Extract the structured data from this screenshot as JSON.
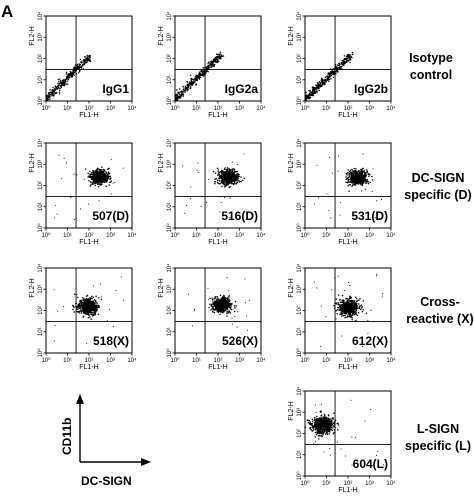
{
  "figure": {
    "panel_letter": "A",
    "tick_labels": [
      "10⁰",
      "10¹",
      "10²",
      "10³",
      "10⁴"
    ],
    "x_axis_label": "FL1-H",
    "y_axis_label": "FL2-H",
    "legend_key": {
      "y": "CD11b",
      "x": "DC-SIGN"
    },
    "row_labels": [
      [
        "Isotype",
        "control"
      ],
      [
        "DC-SIGN",
        "specific (D)"
      ],
      [
        "Cross-",
        "reactive (X)"
      ],
      [
        "L-SIGN",
        "specific (L)"
      ]
    ]
  },
  "chart_data": {
    "type": "scatter",
    "xlabel": "FL1-H",
    "ylabel": "FL2-H",
    "xscale": "log",
    "yscale": "log",
    "xlim": [
      1,
      10000
    ],
    "ylim": [
      1,
      10000
    ],
    "quadrant_gate": {
      "x": 25,
      "y": 30
    },
    "plots": [
      {
        "row": 1,
        "col": 1,
        "label": "IgG1",
        "population": "diagonal",
        "center": [
          5,
          6
        ],
        "spread": 0.55
      },
      {
        "row": 1,
        "col": 2,
        "label": "IgG2a",
        "population": "diagonal",
        "center": [
          6,
          7
        ],
        "spread": 0.55
      },
      {
        "row": 1,
        "col": 3,
        "label": "IgG2b",
        "population": "diagonal",
        "center": [
          6,
          7
        ],
        "spread": 0.55
      },
      {
        "row": 2,
        "col": 1,
        "label": "507(D)",
        "population": "cluster",
        "center": [
          300,
          250
        ],
        "spread": 0.22
      },
      {
        "row": 2,
        "col": 2,
        "label": "516(D)",
        "population": "cluster",
        "center": [
          300,
          250
        ],
        "spread": 0.22
      },
      {
        "row": 2,
        "col": 3,
        "label": "531(D)",
        "population": "cluster",
        "center": [
          280,
          230
        ],
        "spread": 0.22
      },
      {
        "row": 3,
        "col": 1,
        "label": "518(X)",
        "population": "cluster",
        "center": [
          90,
          150
        ],
        "spread": 0.24
      },
      {
        "row": 3,
        "col": 2,
        "label": "526(X)",
        "population": "cluster",
        "center": [
          150,
          180
        ],
        "spread": 0.22
      },
      {
        "row": 3,
        "col": 3,
        "label": "612(X)",
        "population": "cluster",
        "center": [
          110,
          140
        ],
        "spread": 0.24
      },
      {
        "row": 4,
        "col": 3,
        "label": "604(L)",
        "population": "cluster",
        "center": [
          7,
          250
        ],
        "spread": 0.26
      }
    ]
  }
}
